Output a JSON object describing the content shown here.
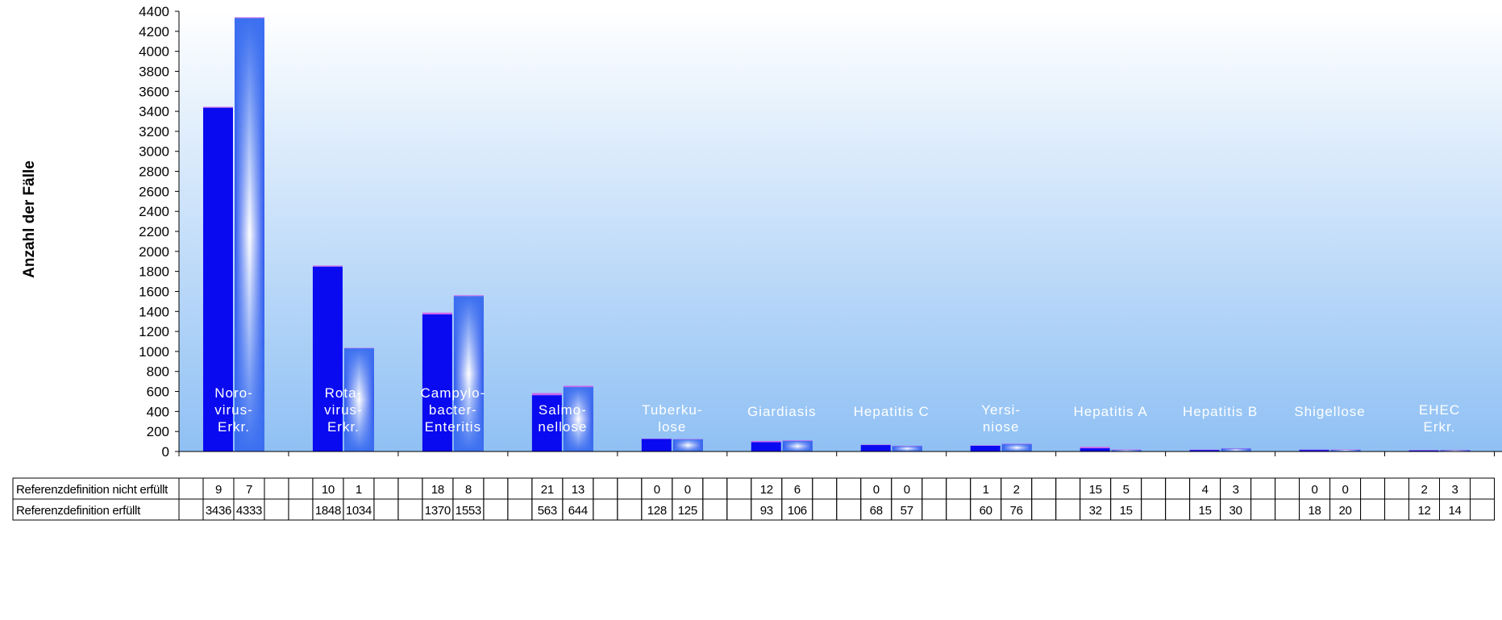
{
  "chart_data": {
    "type": "bar",
    "ylabel": "Anzahl der Fälle",
    "ylim": [
      0,
      4400
    ],
    "yticks": [
      0,
      200,
      400,
      600,
      800,
      1000,
      1200,
      1400,
      1600,
      1800,
      2000,
      2200,
      2400,
      2600,
      2800,
      3000,
      3200,
      3400,
      3600,
      3800,
      4000,
      4200,
      4400
    ],
    "categories": [
      [
        "Noro-",
        "virus-",
        "Erkr."
      ],
      [
        "Rota-",
        "virus-",
        "Erkr."
      ],
      [
        "Campylo-",
        "bacter-",
        "Enteritis"
      ],
      [
        "Salmo-",
        "nellose"
      ],
      [
        "Tuberku-",
        "lose"
      ],
      [
        "Giardiasis"
      ],
      [
        "Hepatitis C"
      ],
      [
        "Yersi-",
        "niose"
      ],
      [
        "Hepatitis A"
      ],
      [
        "Hepatitis B"
      ],
      [
        "Shigellose"
      ],
      [
        "EHEC",
        "Erkr."
      ]
    ],
    "table_rows": [
      {
        "label": "Referenzdefinition nicht erfüllt",
        "values": [
          [
            9,
            7
          ],
          [
            10,
            1
          ],
          [
            18,
            8
          ],
          [
            21,
            13
          ],
          [
            0,
            0
          ],
          [
            12,
            6
          ],
          [
            0,
            0
          ],
          [
            1,
            2
          ],
          [
            15,
            5
          ],
          [
            4,
            3
          ],
          [
            0,
            0
          ],
          [
            2,
            3
          ]
        ]
      },
      {
        "label": "Referenzdefinition erfüllt",
        "values": [
          [
            3436,
            4333
          ],
          [
            1848,
            1034
          ],
          [
            1370,
            1553
          ],
          [
            563,
            644
          ],
          [
            128,
            125
          ],
          [
            93,
            106
          ],
          [
            68,
            57
          ],
          [
            60,
            76
          ],
          [
            32,
            15
          ],
          [
            15,
            30
          ],
          [
            18,
            20
          ],
          [
            12,
            14
          ]
        ]
      }
    ],
    "colors": {
      "bar_first": "#0a0af0",
      "bar_second": "#3b6ff0",
      "bar_top": "#cc66ee",
      "label_text": "#ffffff",
      "bg_top": "#ffffff",
      "bg_bottom": "#8fc0f4"
    }
  }
}
